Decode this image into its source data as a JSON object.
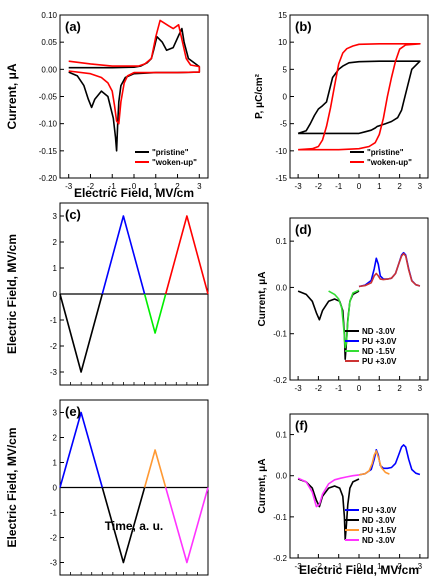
{
  "chart_data": [
    {
      "id": "a",
      "type": "line",
      "label": "(a)",
      "xlabel": "Electric Field, MV/cm",
      "ylabel": "Current, μA",
      "xlim": [
        -3.4,
        3.4
      ],
      "ylim": [
        -0.2,
        0.1
      ],
      "xticks": [
        -3,
        -2,
        -1,
        0,
        1,
        2,
        3
      ],
      "xticklabels": [
        "-3",
        "-2",
        "-1",
        "0",
        "1",
        "2",
        "3"
      ],
      "yticks": [
        -0.2,
        -0.15,
        -0.1,
        -0.05,
        0,
        0.05,
        0.1
      ],
      "yticklabels": [
        "-0.20",
        "-0.15",
        "-0.10",
        "-0.05",
        "0.00",
        "0.05",
        "0.10"
      ],
      "legend_position": "bottom-right",
      "series": [
        {
          "name": "\"pristine\"",
          "color": "#000000",
          "x": [
            -3,
            -2.6,
            -2.3,
            -2.1,
            -1.95,
            -1.8,
            -1.5,
            -1.2,
            -0.95,
            -0.85,
            -0.8,
            -0.75,
            -0.7,
            -0.6,
            -0.4,
            0,
            1,
            2,
            3,
            3,
            2.5,
            2.3,
            2.2,
            2.05,
            1.8,
            1.5,
            1.3,
            1.05,
            0.9,
            0.8,
            0.6,
            0.3,
            0,
            -1,
            -2,
            -3
          ],
          "y": [
            -0.005,
            -0.012,
            -0.03,
            -0.055,
            -0.07,
            -0.055,
            -0.04,
            -0.05,
            -0.09,
            -0.125,
            -0.15,
            -0.1,
            -0.06,
            -0.03,
            -0.015,
            -0.008,
            -0.006,
            -0.006,
            -0.005,
            0.005,
            0.02,
            0.05,
            0.075,
            0.062,
            0.04,
            0.035,
            0.05,
            0.06,
            0.035,
            0.02,
            0.012,
            0.006,
            0.004,
            0.003,
            0.003,
            0.003
          ]
        },
        {
          "name": "\"woken-up\"",
          "color": "#ff0000",
          "x": [
            -3,
            -2,
            -1.5,
            -1.2,
            -1,
            -0.9,
            -0.8,
            -0.7,
            -0.6,
            -0.45,
            -0.3,
            0,
            1,
            2,
            3,
            3,
            2.6,
            2.4,
            2.2,
            2.05,
            1.8,
            1.6,
            1.4,
            1.2,
            1.0,
            0.8,
            0.5,
            0.2,
            0,
            -1,
            -2,
            -3
          ],
          "y": [
            -0.003,
            -0.008,
            -0.015,
            -0.025,
            -0.04,
            -0.065,
            -0.095,
            -0.1,
            -0.06,
            -0.025,
            -0.012,
            -0.006,
            -0.006,
            -0.006,
            -0.005,
            0.005,
            0.008,
            0.02,
            0.055,
            0.082,
            0.075,
            0.08,
            0.085,
            0.09,
            0.06,
            0.02,
            0.01,
            0.006,
            0.006,
            0.006,
            0.01,
            0.015
          ]
        }
      ]
    },
    {
      "id": "b",
      "type": "line",
      "label": "(b)",
      "xlabel": "",
      "ylabel": "P, μC/cm²",
      "xlim": [
        -3.4,
        3.4
      ],
      "ylim": [
        -15,
        15
      ],
      "xticks": [
        -3,
        -2,
        -1,
        0,
        1,
        2,
        3
      ],
      "xticklabels": [
        "-3",
        "-2",
        "-1",
        "0",
        "1",
        "2",
        "3"
      ],
      "yticks": [
        -15,
        -10,
        -5,
        0,
        5,
        10,
        15
      ],
      "yticklabels": [
        "-15",
        "-10",
        "-5",
        "0",
        "5",
        "10",
        "15"
      ],
      "legend_position": "bottom-right",
      "series": [
        {
          "name": "\"pristine\"",
          "color": "#000000",
          "x": [
            -3,
            -2,
            -1.5,
            -0.5,
            0,
            0.3,
            0.6,
            0.8,
            0.9,
            1,
            1.3,
            1.6,
            1.9,
            2.1,
            2.2,
            2.4,
            2.6,
            3,
            3,
            2,
            1,
            0,
            -0.5,
            -0.8,
            -1,
            -1.3,
            -1.6,
            -1.8,
            -2,
            -2.2,
            -2.4,
            -2.6,
            -3
          ],
          "y": [
            -6.8,
            -6.8,
            -6.8,
            -6.8,
            -6.8,
            -6.5,
            -6.2,
            -5.8,
            -5.5,
            -5.4,
            -5,
            -4.6,
            -3.9,
            -2.5,
            -1,
            2,
            5,
            6.5,
            6.5,
            6.5,
            6.5,
            6.4,
            6.2,
            5.6,
            5,
            3.5,
            -1,
            -1.7,
            -2.3,
            -3.5,
            -5,
            -6.3,
            -6.8
          ]
        },
        {
          "name": "\"woken-up\"",
          "color": "#ff0000",
          "x": [
            -3,
            -2,
            -1,
            0,
            0.5,
            0.8,
            1,
            1.2,
            1.4,
            1.6,
            1.8,
            2,
            2.3,
            3,
            3,
            2,
            1,
            0,
            -0.3,
            -0.6,
            -0.8,
            -1,
            -1.2,
            -1.4,
            -1.6,
            -1.8,
            -2,
            -2.3,
            -3
          ],
          "y": [
            -9.8,
            -9.8,
            -9.8,
            -9.6,
            -9.2,
            -8.5,
            -7,
            -4,
            0,
            3.5,
            6.5,
            8.7,
            9.5,
            9.7,
            9.7,
            9.7,
            9.7,
            9.6,
            9.3,
            8.8,
            8,
            6,
            2,
            -2,
            -5.5,
            -8,
            -9.2,
            -9.6,
            -9.8
          ]
        }
      ]
    },
    {
      "id": "c",
      "type": "line",
      "label": "(c)",
      "xlabel": "",
      "ylabel": "Electric Field, MV/cm",
      "xlim": [
        0,
        14
      ],
      "ylim": [
        -3.5,
        3.5
      ],
      "yticks": [
        -3,
        -2,
        -1,
        0,
        1,
        2,
        3
      ],
      "yticklabels": [
        "-3",
        "-2",
        "-1",
        "0",
        "1",
        "2",
        "3"
      ],
      "series": [
        {
          "name": "",
          "color": "#000000",
          "x": [
            0,
            2,
            4
          ],
          "y": [
            0,
            -3,
            0
          ]
        },
        {
          "name": "",
          "color": "#0000ff",
          "x": [
            4,
            6,
            8
          ],
          "y": [
            0,
            3,
            0
          ]
        },
        {
          "name": "",
          "color": "#00ee00",
          "x": [
            8,
            9,
            10
          ],
          "y": [
            0,
            -1.5,
            0
          ]
        },
        {
          "name": "",
          "color": "#ff0000",
          "x": [
            10,
            12,
            14
          ],
          "y": [
            0,
            3,
            0
          ]
        }
      ]
    },
    {
      "id": "d",
      "type": "line",
      "label": "(d)",
      "xlabel": "",
      "ylabel": "Current, μA",
      "xlim": [
        -3.4,
        3.4
      ],
      "ylim": [
        -0.2,
        0.15
      ],
      "xticks": [
        -3,
        -2,
        -1,
        0,
        1,
        2,
        3
      ],
      "xticklabels": [
        "-3",
        "-2",
        "-1",
        "0",
        "1",
        "2",
        "3"
      ],
      "yticks": [
        -0.2,
        -0.1,
        0,
        0.1
      ],
      "yticklabels": [
        "-0.2",
        "-0.1",
        "0.0",
        "0.1"
      ],
      "legend_position": "bottom-right",
      "series": [
        {
          "name": "ND -3.0V",
          "color": "#000000",
          "x": [
            0,
            -0.3,
            -0.45,
            -0.55,
            -0.62,
            -0.68,
            -0.72,
            -0.8,
            -0.95,
            -1.2,
            -1.5,
            -1.8,
            -1.95,
            -2.1,
            -2.3,
            -2.6,
            -3
          ],
          "y": [
            -0.008,
            -0.015,
            -0.03,
            -0.07,
            -0.12,
            -0.155,
            -0.1,
            -0.05,
            -0.03,
            -0.025,
            -0.03,
            -0.05,
            -0.07,
            -0.055,
            -0.03,
            -0.015,
            -0.008
          ]
        },
        {
          "name": "PU +3.0V",
          "color": "#0000ff",
          "x": [
            0,
            0.3,
            0.6,
            0.75,
            0.85,
            0.95,
            1.05,
            1.2,
            1.4,
            1.6,
            1.8,
            1.95,
            2.1,
            2.2,
            2.3,
            2.45,
            2.6,
            2.8,
            3
          ],
          "y": [
            0.002,
            0.005,
            0.015,
            0.04,
            0.063,
            0.05,
            0.025,
            0.018,
            0.018,
            0.02,
            0.03,
            0.05,
            0.07,
            0.075,
            0.07,
            0.04,
            0.015,
            0.006,
            0.003
          ]
        },
        {
          "name": "ND -1.5V",
          "color": "#33dd33",
          "x": [
            0,
            -0.3,
            -0.45,
            -0.55,
            -0.62,
            -0.68,
            -0.75,
            -0.85,
            -1,
            -1.2,
            -1.5
          ],
          "y": [
            -0.006,
            -0.012,
            -0.03,
            -0.075,
            -0.12,
            -0.13,
            -0.09,
            -0.045,
            -0.025,
            -0.015,
            -0.008
          ]
        },
        {
          "name": "PU +3.0V",
          "color": "#cc3333",
          "x": [
            0,
            0.3,
            0.6,
            0.75,
            0.85,
            0.95,
            1.05,
            1.2,
            1.4,
            1.6,
            1.8,
            1.95,
            2.1,
            2.2,
            2.3,
            2.45,
            2.6,
            2.8,
            3
          ],
          "y": [
            0.002,
            0.004,
            0.01,
            0.025,
            0.03,
            0.025,
            0.018,
            0.017,
            0.018,
            0.02,
            0.03,
            0.05,
            0.068,
            0.073,
            0.068,
            0.038,
            0.014,
            0.006,
            0.003
          ]
        }
      ]
    },
    {
      "id": "e",
      "type": "line",
      "label": "(e)",
      "xlabel": "Time, a. u.",
      "ylabel": "Electric Field, MV/cm",
      "xlim": [
        0,
        14
      ],
      "ylim": [
        -3.5,
        3.5
      ],
      "yticks": [
        -3,
        -2,
        -1,
        0,
        1,
        2,
        3
      ],
      "yticklabels": [
        "-3",
        "-2",
        "-1",
        "0",
        "1",
        "2",
        "3"
      ],
      "series": [
        {
          "name": "",
          "color": "#0000ff",
          "x": [
            0,
            2,
            4
          ],
          "y": [
            0,
            3,
            0
          ]
        },
        {
          "name": "",
          "color": "#000000",
          "x": [
            4,
            6,
            8
          ],
          "y": [
            0,
            -3,
            0
          ]
        },
        {
          "name": "",
          "color": "#ff9933",
          "x": [
            8,
            9,
            10
          ],
          "y": [
            0,
            1.5,
            0
          ]
        },
        {
          "name": "",
          "color": "#ff33ff",
          "x": [
            10,
            12,
            14
          ],
          "y": [
            0,
            -3,
            0
          ]
        }
      ]
    },
    {
      "id": "f",
      "type": "line",
      "label": "(f)",
      "xlabel": "Electric Field, MV/cm",
      "ylabel": "Current, μA",
      "xlim": [
        -3.4,
        3.4
      ],
      "ylim": [
        -0.2,
        0.15
      ],
      "xticks": [
        -3,
        -2,
        -1,
        0,
        1,
        2,
        3
      ],
      "xticklabels": [
        "-3",
        "-2",
        "-1",
        "0",
        "1",
        "2",
        "3"
      ],
      "yticks": [
        -0.2,
        -0.1,
        0,
        0.1
      ],
      "yticklabels": [
        "-0.2",
        "-0.1",
        "0.0",
        "0.1"
      ],
      "legend_position": "bottom-right",
      "series": [
        {
          "name": "PU +3.0V",
          "color": "#0000ff",
          "x": [
            0,
            0.3,
            0.6,
            0.75,
            0.85,
            0.95,
            1.05,
            1.2,
            1.4,
            1.6,
            1.8,
            1.95,
            2.1,
            2.2,
            2.3,
            2.45,
            2.6,
            2.8,
            3
          ],
          "y": [
            0.002,
            0.005,
            0.015,
            0.04,
            0.063,
            0.05,
            0.025,
            0.018,
            0.018,
            0.02,
            0.03,
            0.05,
            0.07,
            0.075,
            0.07,
            0.04,
            0.015,
            0.006,
            0.003
          ]
        },
        {
          "name": "ND -3.0V",
          "color": "#000000",
          "x": [
            0,
            -0.3,
            -0.45,
            -0.55,
            -0.62,
            -0.68,
            -0.72,
            -0.8,
            -0.95,
            -1.2,
            -1.5,
            -1.8,
            -1.95,
            -2.1,
            -2.3,
            -2.6,
            -3
          ],
          "y": [
            -0.008,
            -0.015,
            -0.03,
            -0.07,
            -0.12,
            -0.155,
            -0.1,
            -0.05,
            -0.03,
            -0.025,
            -0.03,
            -0.05,
            -0.075,
            -0.06,
            -0.03,
            -0.015,
            -0.008
          ]
        },
        {
          "name": "PU +1.5V",
          "color": "#ff9933",
          "x": [
            0,
            0.3,
            0.5,
            0.65,
            0.75,
            0.85,
            0.95,
            1.1,
            1.3,
            1.5
          ],
          "y": [
            0.002,
            0.005,
            0.012,
            0.03,
            0.05,
            0.06,
            0.045,
            0.02,
            0.008,
            0.004
          ]
        },
        {
          "name": "ND -3.0V",
          "color": "#ff33ff",
          "x": [
            0,
            -0.3,
            -0.6,
            -0.9,
            -1.2,
            -1.5,
            -1.8,
            -1.95,
            -2.1,
            -2.3,
            -2.6,
            -3
          ],
          "y": [
            0.002,
            0.0,
            -0.003,
            -0.006,
            -0.01,
            -0.02,
            -0.045,
            -0.07,
            -0.075,
            -0.04,
            -0.015,
            -0.006
          ]
        }
      ]
    }
  ]
}
